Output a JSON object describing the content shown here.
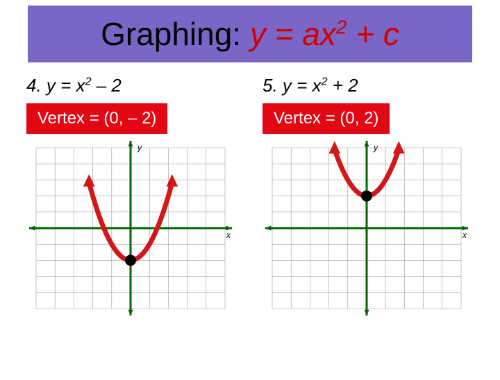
{
  "title": {
    "prefix": "Graphing: ",
    "expr_y": "y = ax",
    "expr_sup": "2",
    "expr_tail": " + c",
    "background": "#7966c6",
    "prefix_color": "#000000",
    "expr_color": "#d00000",
    "font_size": 46
  },
  "problems": [
    {
      "number": "4.",
      "equation_lhs": "y = x",
      "equation_sup": "2",
      "equation_rhs": " – 2",
      "vertex_label": "Vertex = (0, – 2)",
      "vertex_bg": "#e30613",
      "vertex_color": "#ffffff",
      "chart": {
        "xlim": [
          -5,
          5
        ],
        "ylim": [
          -5,
          5
        ],
        "grid_color": "#9a9a9a",
        "axis_color": "#006400",
        "curve_color": "#d11717",
        "curve_width": 7,
        "vertex_point": [
          0,
          -2
        ],
        "vertex_point_color": "#000000",
        "parabola_a": 1,
        "parabola_c": -2,
        "x_label": "x",
        "y_label": "y",
        "arrow_x_start": -2.2,
        "arrow_x_end": 2.2
      }
    },
    {
      "number": "5.",
      "equation_lhs": "y = x",
      "equation_sup": "2",
      "equation_rhs": " + 2",
      "vertex_label": "Vertex = (0, 2)",
      "vertex_bg": "#e30613",
      "vertex_color": "#ffffff",
      "chart": {
        "xlim": [
          -5,
          5
        ],
        "ylim": [
          -5,
          5
        ],
        "grid_color": "#9a9a9a",
        "axis_color": "#006400",
        "curve_color": "#d11717",
        "curve_width": 7,
        "vertex_point": [
          0,
          2
        ],
        "vertex_point_color": "#000000",
        "parabola_a": 1,
        "parabola_c": 2,
        "x_label": "x",
        "y_label": "y",
        "arrow_x_start": -1.7,
        "arrow_x_end": 1.7
      }
    }
  ]
}
